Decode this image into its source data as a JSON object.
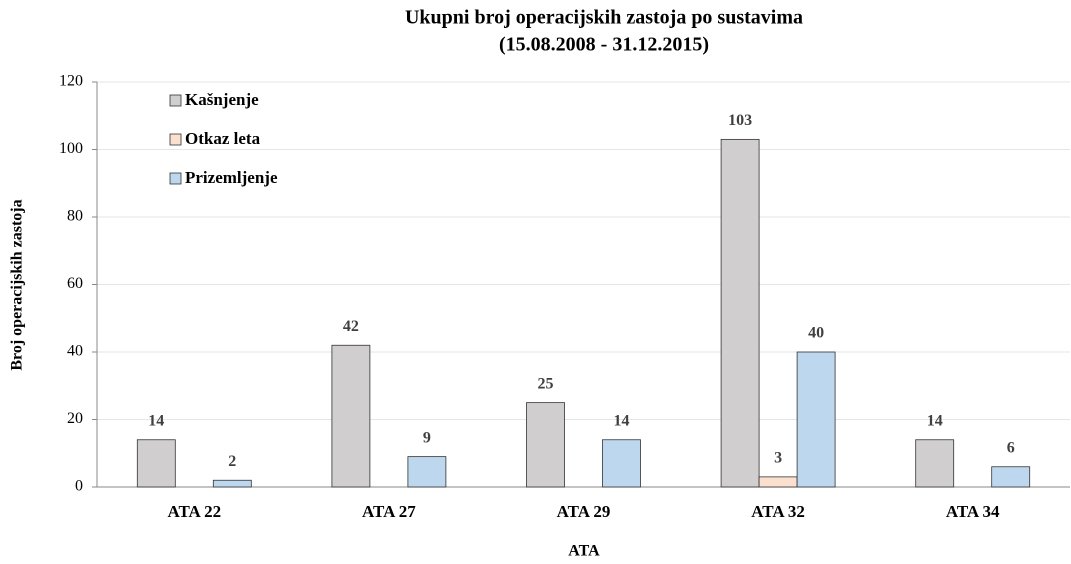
{
  "chart_data": {
    "type": "bar",
    "title": "Ukupni broj operacijskih zastoja po sustavima",
    "subtitle": "(15.08.2008 - 31.12.2015)",
    "x_label": "ATA",
    "y_label": "Broj operacijskih zastoja",
    "categories": [
      "ATA 22",
      "ATA 27",
      "ATA 29",
      "ATA 32",
      "ATA 34"
    ],
    "series": [
      {
        "name": "Kašnjenje",
        "color": "#d0cece",
        "values": [
          14,
          42,
          25,
          103,
          14
        ]
      },
      {
        "name": "Otkaz leta",
        "color": "#fbe0d0",
        "values": [
          null,
          null,
          null,
          3,
          null
        ]
      },
      {
        "name": "Prizemljenje",
        "color": "#bdd7ee",
        "values": [
          2,
          9,
          14,
          40,
          6
        ]
      }
    ],
    "ylim": [
      0,
      120
    ],
    "yticks": [
      0,
      20,
      40,
      60,
      80,
      100,
      120
    ],
    "grid": true,
    "legend": "upper left"
  }
}
